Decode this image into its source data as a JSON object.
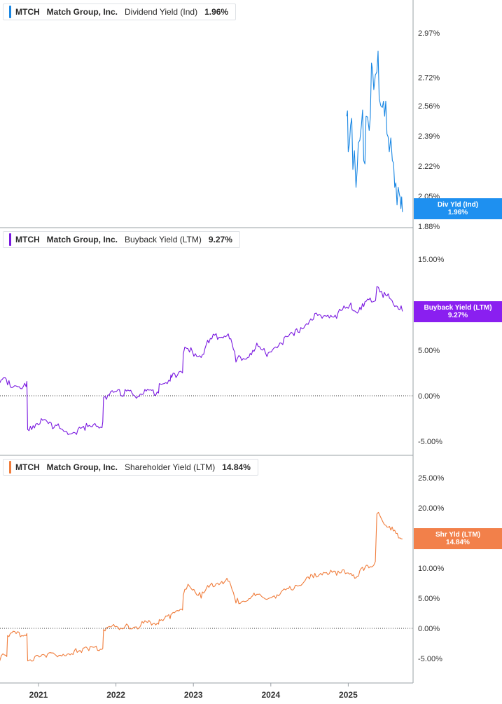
{
  "x_axis": {
    "tick_labels": [
      "2021",
      "2022",
      "2023",
      "2024",
      "2025"
    ]
  },
  "panels": [
    {
      "ticker": "MTCH",
      "company": "Match Group, Inc.",
      "metric": "Dividend Yield (Ind)",
      "value": "1.96%",
      "color": "#1a87e3",
      "label_box": {
        "line1": "Div Yld (Ind)",
        "line2": "1.96%",
        "color": "#1e90f0"
      }
    },
    {
      "ticker": "MTCH",
      "company": "Match Group, Inc.",
      "metric": "Buyback Yield (LTM)",
      "value": "9.27%",
      "color": "#7a19e0",
      "label_box": {
        "line1": "Buyback Yield (LTM)",
        "line2": "9.27%",
        "color": "#8a1ff0"
      }
    },
    {
      "ticker": "MTCH",
      "company": "Match Group, Inc.",
      "metric": "Shareholder Yield (LTM)",
      "value": "14.84%",
      "color": "#f07d3c",
      "label_box": {
        "line1": "Shr Yld (LTM)",
        "line2": "14.84%",
        "color": "#f2804a"
      }
    }
  ],
  "chart_data": [
    {
      "type": "line",
      "title": "MTCH Match Group, Inc. Dividend Yield (Ind) 1.96%",
      "ylim": [
        1.88,
        3.25
      ],
      "y_ticks": [
        1.88,
        2.05,
        2.22,
        2.39,
        2.56,
        2.72,
        2.97
      ],
      "y_tick_labels": [
        "1.88%",
        "2.05%",
        "2.22%",
        "2.39%",
        "2.56%",
        "2.72%",
        "2.97%"
      ],
      "series": [
        {
          "x": [
            2024.98,
            2025.0,
            2025.03,
            2025.06,
            2025.1,
            2025.13,
            2025.17,
            2025.2,
            2025.23,
            2025.27,
            2025.3,
            2025.33,
            2025.37,
            2025.4,
            2025.44,
            2025.47,
            2025.5,
            2025.53,
            2025.57,
            2025.6,
            2025.63,
            2025.66,
            2025.68,
            2025.7
          ],
          "y": [
            2.5,
            2.3,
            2.45,
            2.2,
            2.1,
            2.35,
            2.45,
            2.25,
            2.5,
            2.42,
            2.8,
            2.65,
            2.75,
            2.6,
            2.55,
            2.5,
            2.4,
            2.3,
            2.25,
            2.1,
            2.0,
            2.06,
            1.98,
            1.96
          ]
        }
      ]
    },
    {
      "type": "line",
      "title": "MTCH Match Group, Inc. Buyback Yield (LTM) 9.27%",
      "ylim": [
        -6.5,
        16.5
      ],
      "y_ticks": [
        -5,
        0,
        5,
        15
      ],
      "y_tick_labels": [
        "-5.00%",
        "0.00%",
        "5.00%",
        "15.00%"
      ],
      "zero_line": true,
      "series": [
        {
          "x": [
            2020.5,
            2020.6,
            2020.75,
            2020.84,
            2020.86,
            2021.0,
            2021.2,
            2021.4,
            2021.6,
            2021.82,
            2021.84,
            2022.1,
            2022.3,
            2022.32,
            2022.55,
            2022.57,
            2022.7,
            2022.72,
            2022.85,
            2022.87,
            2022.95,
            2023.1,
            2023.2,
            2023.35,
            2023.45,
            2023.55,
            2023.7,
            2023.8,
            2023.95,
            2024.1,
            2024.3,
            2024.35,
            2024.5,
            2024.55,
            2024.7,
            2024.85,
            2025.0,
            2025.1,
            2025.2,
            2025.3,
            2025.37,
            2025.45,
            2025.55,
            2025.65,
            2025.7
          ],
          "y": [
            1.4,
            1.2,
            1.0,
            1.0,
            -3.7,
            -3.2,
            -3.5,
            -4.2,
            -3.8,
            -3.5,
            -0.2,
            0,
            -0.1,
            0.2,
            0.3,
            1.3,
            1.6,
            2.0,
            2.6,
            4.6,
            4.8,
            4.2,
            5.8,
            6.4,
            6.8,
            3.7,
            4.2,
            5.2,
            4.3,
            5.5,
            6.6,
            7.0,
            8.2,
            8.4,
            8.8,
            8.5,
            9.6,
            9.2,
            9.8,
            10.3,
            12.0,
            10.8,
            10.6,
            9.5,
            9.27
          ]
        }
      ]
    },
    {
      "type": "line",
      "title": "MTCH Match Group, Inc. Shareholder Yield (LTM) 14.84%",
      "ylim": [
        -9,
        27
      ],
      "y_ticks": [
        -5,
        0,
        5,
        10,
        15,
        20,
        25
      ],
      "y_tick_labels": [
        "-5.00%",
        "0.00%",
        "5.00%",
        "10.00%",
        "15.00%",
        "20.00%",
        "25.00%"
      ],
      "zero_line": true,
      "series": [
        {
          "x": [
            2020.5,
            2020.58,
            2020.6,
            2020.84,
            2020.86,
            2021.1,
            2021.3,
            2021.5,
            2021.65,
            2021.82,
            2021.84,
            2022.1,
            2022.3,
            2022.32,
            2022.55,
            2022.57,
            2022.7,
            2022.72,
            2022.85,
            2022.87,
            2022.95,
            2023.1,
            2023.2,
            2023.35,
            2023.45,
            2023.55,
            2023.7,
            2023.8,
            2023.95,
            2024.1,
            2024.3,
            2024.35,
            2024.5,
            2024.55,
            2024.7,
            2024.85,
            2025.0,
            2025.1,
            2025.2,
            2025.3,
            2025.33,
            2025.37,
            2025.45,
            2025.55,
            2025.65,
            2025.7
          ],
          "y": [
            -5.4,
            -4.5,
            -1.2,
            -1.2,
            -5.4,
            -4.8,
            -4.6,
            -4.0,
            -3.7,
            -3.5,
            -0.2,
            0,
            0.1,
            0.5,
            0.7,
            1.3,
            1.6,
            2.4,
            3.2,
            5.5,
            7.0,
            5.0,
            6.8,
            7.5,
            7.8,
            4.2,
            4.6,
            5.4,
            4.8,
            5.4,
            6.6,
            7.0,
            8.2,
            8.4,
            9.2,
            8.8,
            9.2,
            8.4,
            9.6,
            10.2,
            10.5,
            19.0,
            17.6,
            16.3,
            15.0,
            14.84
          ]
        }
      ]
    }
  ]
}
